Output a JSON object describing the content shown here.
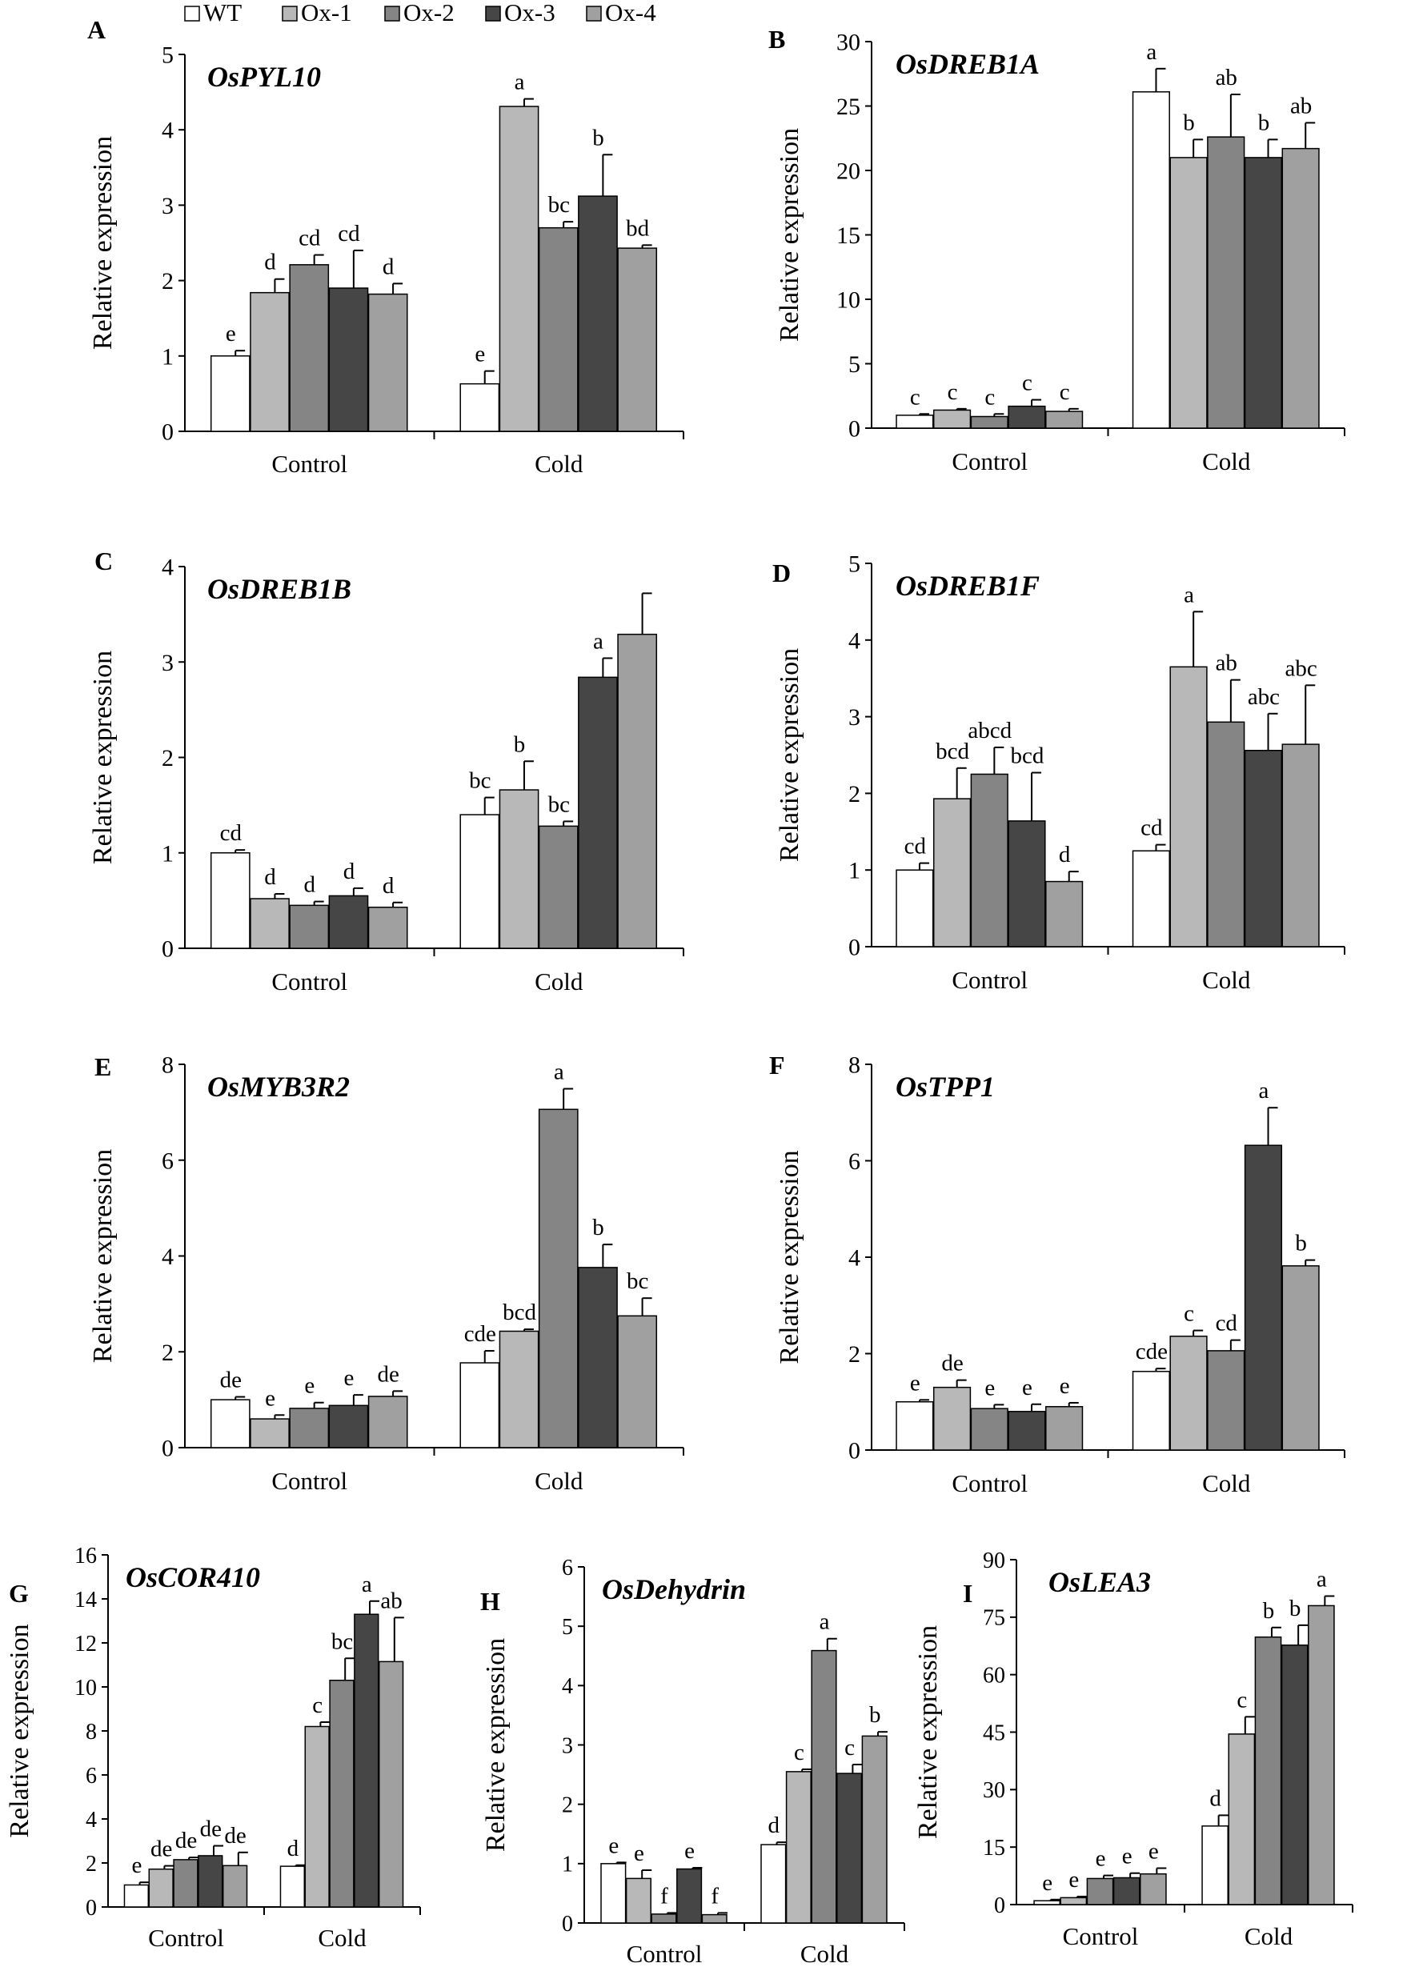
{
  "legend": {
    "entries": [
      {
        "name": "WT",
        "color": "#ffffff"
      },
      {
        "name": "Ox-1",
        "color": "#b8b8b8"
      },
      {
        "name": "Ox-2",
        "color": "#858585"
      },
      {
        "name": "Ox-3",
        "color": "#464646"
      },
      {
        "name": "Ox-4",
        "color": "#a0a0a0"
      }
    ]
  },
  "chart_data": [
    {
      "panel": "A",
      "type": "bar",
      "title": "OsPYL10",
      "ylabel": "Relative expression",
      "ylim": [
        0,
        5
      ],
      "yticks": [
        0,
        1,
        2,
        3,
        4,
        5
      ],
      "categories": [
        "Control",
        "Cold"
      ],
      "series": [
        {
          "name": "WT",
          "values": [
            1.0,
            0.63
          ],
          "errors": [
            0.07,
            0.17
          ]
        },
        {
          "name": "Ox-1",
          "values": [
            1.84,
            4.31
          ],
          "errors": [
            0.18,
            0.1
          ]
        },
        {
          "name": "Ox-2",
          "values": [
            2.21,
            2.7
          ],
          "errors": [
            0.13,
            0.08
          ]
        },
        {
          "name": "Ox-3",
          "values": [
            1.9,
            3.12
          ],
          "errors": [
            0.5,
            0.55
          ]
        },
        {
          "name": "Ox-4",
          "values": [
            1.82,
            2.43
          ],
          "errors": [
            0.14,
            0.04
          ]
        }
      ],
      "letters": [
        [
          "e",
          "d",
          "cd",
          "cd",
          "d"
        ],
        [
          "e",
          "a",
          "bc",
          "b",
          "bd"
        ]
      ]
    },
    {
      "panel": "B",
      "type": "bar",
      "title": "OsDREB1A",
      "ylabel": "Relative expression",
      "ylim": [
        0,
        30
      ],
      "yticks": [
        0,
        5,
        10,
        15,
        20,
        25,
        30
      ],
      "categories": [
        "Control",
        "Cold"
      ],
      "series": [
        {
          "name": "WT",
          "values": [
            1.0,
            26.1
          ],
          "errors": [
            0.1,
            1.8
          ]
        },
        {
          "name": "Ox-1",
          "values": [
            1.4,
            21.0
          ],
          "errors": [
            0.1,
            1.4
          ]
        },
        {
          "name": "Ox-2",
          "values": [
            0.9,
            22.6
          ],
          "errors": [
            0.2,
            3.3
          ]
        },
        {
          "name": "Ox-3",
          "values": [
            1.7,
            21.0
          ],
          "errors": [
            0.5,
            1.4
          ]
        },
        {
          "name": "Ox-4",
          "values": [
            1.3,
            21.7
          ],
          "errors": [
            0.2,
            2.0
          ]
        }
      ],
      "letters": [
        [
          "c",
          "c",
          "c",
          "c",
          "c"
        ],
        [
          "a",
          "b",
          "ab",
          "b",
          "ab"
        ]
      ]
    },
    {
      "panel": "C",
      "type": "bar",
      "title": "OsDREB1B",
      "ylabel": "Relative expression",
      "ylim": [
        0,
        4
      ],
      "yticks": [
        0,
        1,
        2,
        3,
        4
      ],
      "categories": [
        "Control",
        "Cold"
      ],
      "series": [
        {
          "name": "WT",
          "values": [
            1.0,
            1.4
          ],
          "errors": [
            0.03,
            0.18
          ]
        },
        {
          "name": "Ox-1",
          "values": [
            0.52,
            1.66
          ],
          "errors": [
            0.05,
            0.3
          ]
        },
        {
          "name": "Ox-2",
          "values": [
            0.45,
            1.28
          ],
          "errors": [
            0.04,
            0.05
          ]
        },
        {
          "name": "Ox-3",
          "values": [
            0.55,
            2.84
          ],
          "errors": [
            0.08,
            0.2
          ]
        },
        {
          "name": "Ox-4",
          "values": [
            0.43,
            3.29
          ],
          "errors": [
            0.05,
            0.43
          ]
        }
      ],
      "letters": [
        [
          "cd",
          "d",
          "d",
          "d",
          "d"
        ],
        [
          "bc",
          "b",
          "bc",
          "a",
          ""
        ]
      ]
    },
    {
      "panel": "D",
      "type": "bar",
      "title": "OsDREB1F",
      "ylabel": "Relative expression",
      "ylim": [
        0,
        5
      ],
      "yticks": [
        0,
        1,
        2,
        3,
        4,
        5
      ],
      "categories": [
        "Control",
        "Cold"
      ],
      "series": [
        {
          "name": "WT",
          "values": [
            1.0,
            1.25
          ],
          "errors": [
            0.09,
            0.08
          ]
        },
        {
          "name": "Ox-1",
          "values": [
            1.93,
            3.65
          ],
          "errors": [
            0.4,
            0.72
          ]
        },
        {
          "name": "Ox-2",
          "values": [
            2.25,
            2.93
          ],
          "errors": [
            0.35,
            0.55
          ]
        },
        {
          "name": "Ox-3",
          "values": [
            1.64,
            2.56
          ],
          "errors": [
            0.63,
            0.48
          ]
        },
        {
          "name": "Ox-4",
          "values": [
            0.85,
            2.64
          ],
          "errors": [
            0.13,
            0.77
          ]
        }
      ],
      "letters": [
        [
          "cd",
          "bcd",
          "abcd",
          "bcd",
          "d"
        ],
        [
          "cd",
          "a",
          "ab",
          "abc",
          "abc"
        ]
      ]
    },
    {
      "panel": "E",
      "type": "bar",
      "title": "OsMYB3R2",
      "ylabel": "Relative expression",
      "ylim": [
        0,
        8
      ],
      "yticks": [
        0,
        2,
        4,
        6,
        8
      ],
      "categories": [
        "Control",
        "Cold"
      ],
      "series": [
        {
          "name": "WT",
          "values": [
            1.0,
            1.77
          ],
          "errors": [
            0.06,
            0.25
          ]
        },
        {
          "name": "Ox-1",
          "values": [
            0.6,
            2.43
          ],
          "errors": [
            0.08,
            0.04
          ]
        },
        {
          "name": "Ox-2",
          "values": [
            0.82,
            7.06
          ],
          "errors": [
            0.12,
            0.43
          ]
        },
        {
          "name": "Ox-3",
          "values": [
            0.88,
            3.76
          ],
          "errors": [
            0.22,
            0.48
          ]
        },
        {
          "name": "Ox-4",
          "values": [
            1.07,
            2.75
          ],
          "errors": [
            0.11,
            0.37
          ]
        }
      ],
      "letters": [
        [
          "de",
          "e",
          "e",
          "e",
          "de"
        ],
        [
          "cde",
          "bcd",
          "a",
          "b",
          "bc"
        ]
      ]
    },
    {
      "panel": "F",
      "type": "bar",
      "title": "OsTPP1",
      "ylabel": "Relative expression",
      "ylim": [
        0,
        8
      ],
      "yticks": [
        0,
        2,
        4,
        6,
        8
      ],
      "categories": [
        "Control",
        "Cold"
      ],
      "series": [
        {
          "name": "WT",
          "values": [
            1.0,
            1.63
          ],
          "errors": [
            0.04,
            0.06
          ]
        },
        {
          "name": "Ox-1",
          "values": [
            1.3,
            2.36
          ],
          "errors": [
            0.15,
            0.12
          ]
        },
        {
          "name": "Ox-2",
          "values": [
            0.86,
            2.06
          ],
          "errors": [
            0.08,
            0.22
          ]
        },
        {
          "name": "Ox-3",
          "values": [
            0.8,
            6.32
          ],
          "errors": [
            0.15,
            0.78
          ]
        },
        {
          "name": "Ox-4",
          "values": [
            0.9,
            3.82
          ],
          "errors": [
            0.08,
            0.12
          ]
        }
      ],
      "letters": [
        [
          "e",
          "de",
          "e",
          "e",
          "e"
        ],
        [
          "cde",
          "c",
          "cd",
          "a",
          "b"
        ]
      ]
    },
    {
      "panel": "G",
      "type": "bar",
      "title": "OsCOR410",
      "ylabel": "Relative expression",
      "ylim": [
        0,
        16
      ],
      "yticks": [
        0,
        2,
        4,
        6,
        8,
        10,
        12,
        14,
        16
      ],
      "categories": [
        "Control",
        "Cold"
      ],
      "series": [
        {
          "name": "WT",
          "values": [
            1.0,
            1.85
          ],
          "errors": [
            0.12,
            0.05
          ]
        },
        {
          "name": "Ox-1",
          "values": [
            1.72,
            8.2
          ],
          "errors": [
            0.15,
            0.2
          ]
        },
        {
          "name": "Ox-2",
          "values": [
            2.15,
            10.3
          ],
          "errors": [
            0.1,
            1.0
          ]
        },
        {
          "name": "Ox-3",
          "values": [
            2.33,
            13.3
          ],
          "errors": [
            0.45,
            0.6
          ]
        },
        {
          "name": "Ox-4",
          "values": [
            1.88,
            11.15
          ],
          "errors": [
            0.6,
            2.0
          ]
        }
      ],
      "letters": [
        [
          "e",
          "de",
          "de",
          "de",
          "de"
        ],
        [
          "d",
          "c",
          "bc",
          "a",
          "ab"
        ]
      ]
    },
    {
      "panel": "H",
      "type": "bar",
      "title": "OsDehydrin",
      "ylabel": "Relative expression",
      "ylim": [
        0,
        6
      ],
      "yticks": [
        0,
        1,
        2,
        3,
        4,
        5,
        6
      ],
      "categories": [
        "Control",
        "Cold"
      ],
      "series": [
        {
          "name": "WT",
          "values": [
            1.0,
            1.32
          ],
          "errors": [
            0.02,
            0.04
          ]
        },
        {
          "name": "Ox-1",
          "values": [
            0.75,
            2.55
          ],
          "errors": [
            0.14,
            0.04
          ]
        },
        {
          "name": "Ox-2",
          "values": [
            0.15,
            4.59
          ],
          "errors": [
            0.02,
            0.2
          ]
        },
        {
          "name": "Ox-3",
          "values": [
            0.91,
            2.52
          ],
          "errors": [
            0.02,
            0.15
          ]
        },
        {
          "name": "Ox-4",
          "values": [
            0.14,
            3.15
          ],
          "errors": [
            0.03,
            0.07
          ]
        }
      ],
      "letters": [
        [
          "e",
          "e",
          "f",
          "e",
          "f"
        ],
        [
          "d",
          "c",
          "a",
          "c",
          "b"
        ]
      ]
    },
    {
      "panel": "I",
      "type": "bar",
      "title": "OsLEA3",
      "ylabel": "Relative expression",
      "ylim": [
        0,
        90
      ],
      "yticks": [
        0,
        15,
        30,
        45,
        60,
        75,
        90
      ],
      "categories": [
        "Control",
        "Cold"
      ],
      "series": [
        {
          "name": "WT",
          "values": [
            1.0,
            20.5
          ],
          "errors": [
            0.3,
            2.8
          ]
        },
        {
          "name": "Ox-1",
          "values": [
            1.8,
            44.5
          ],
          "errors": [
            0.3,
            4.5
          ]
        },
        {
          "name": "Ox-2",
          "values": [
            6.8,
            69.8
          ],
          "errors": [
            0.8,
            2.5
          ]
        },
        {
          "name": "Ox-3",
          "values": [
            7.0,
            67.7
          ],
          "errors": [
            1.2,
            5.2
          ]
        },
        {
          "name": "Ox-4",
          "values": [
            8.0,
            78.0
          ],
          "errors": [
            1.5,
            2.5
          ]
        }
      ],
      "letters": [
        [
          "e",
          "e",
          "e",
          "e",
          "e"
        ],
        [
          "d",
          "c",
          "b",
          "b",
          "a"
        ]
      ]
    }
  ]
}
